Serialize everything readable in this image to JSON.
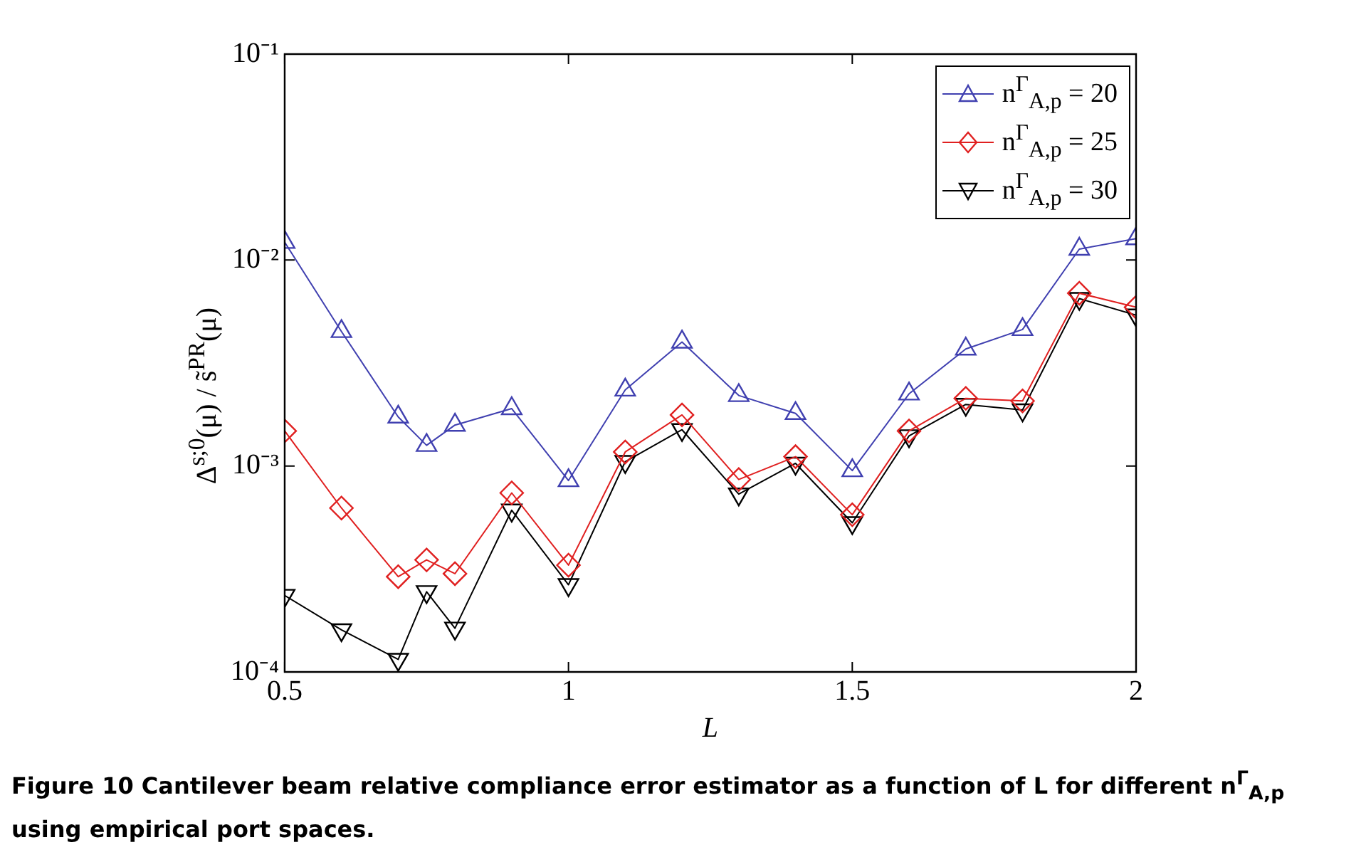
{
  "chart_data": {
    "type": "line",
    "xlabel": "L",
    "ylabel": "Δ$^{s;0}$(μ) / s̃$^{PR}$(μ)",
    "x": [
      0.5,
      0.6,
      0.7,
      0.75,
      0.8,
      0.9,
      1.0,
      1.1,
      1.2,
      1.3,
      1.4,
      1.5,
      1.6,
      1.7,
      1.8,
      1.9,
      2.0
    ],
    "series": [
      {
        "name": "n$^{Γ}$$_{A,p}$ = 20",
        "color": "#4040b0",
        "marker": "triangle",
        "values": [
          0.0122,
          0.0045,
          0.00173,
          0.00126,
          0.00158,
          0.0019,
          0.00085,
          0.00234,
          0.004,
          0.0022,
          0.0018,
          0.00095,
          0.00224,
          0.0037,
          0.0046,
          0.0113,
          0.0127
        ]
      },
      {
        "name": "n$^{Γ}$$_{A,p}$ = 25",
        "color": "#e02020",
        "marker": "diamond",
        "values": [
          0.00148,
          0.000625,
          0.00029,
          0.00035,
          0.0003,
          0.00074,
          0.00033,
          0.00117,
          0.00177,
          0.00086,
          0.00111,
          0.00058,
          0.00148,
          0.00213,
          0.00207,
          0.0069,
          0.0059
        ]
      },
      {
        "name": "n$^{Γ}$$_{A,p}$ = 30",
        "color": "#000000",
        "marker": "triangle_down",
        "values": [
          0.000235,
          0.00016,
          0.000115,
          0.000245,
          0.000163,
          0.00061,
          0.000265,
          0.00105,
          0.0015,
          0.00073,
          0.00103,
          0.00053,
          0.0014,
          0.00199,
          0.00187,
          0.0065,
          0.0054
        ]
      }
    ],
    "xlim": [
      0.5,
      2
    ],
    "xticks": [
      0.5,
      1,
      1.5,
      2
    ],
    "ylim": [
      0.0001,
      0.1
    ],
    "yticks": [
      {
        "value": 0.0001,
        "label": "10⁻⁴"
      },
      {
        "value": 0.001,
        "label": "10⁻³"
      },
      {
        "value": 0.01,
        "label": "10⁻²"
      },
      {
        "value": 0.1,
        "label": "10⁻¹"
      }
    ],
    "log": "y",
    "grid": false,
    "legend": "top right",
    "line_style": "solid",
    "annotations": [
      "Figure 10 Cantilever beam relative compliance error estimator as a function of L for different n$^{Γ}$$_{A,p}$ using empirical port spaces."
    ]
  }
}
